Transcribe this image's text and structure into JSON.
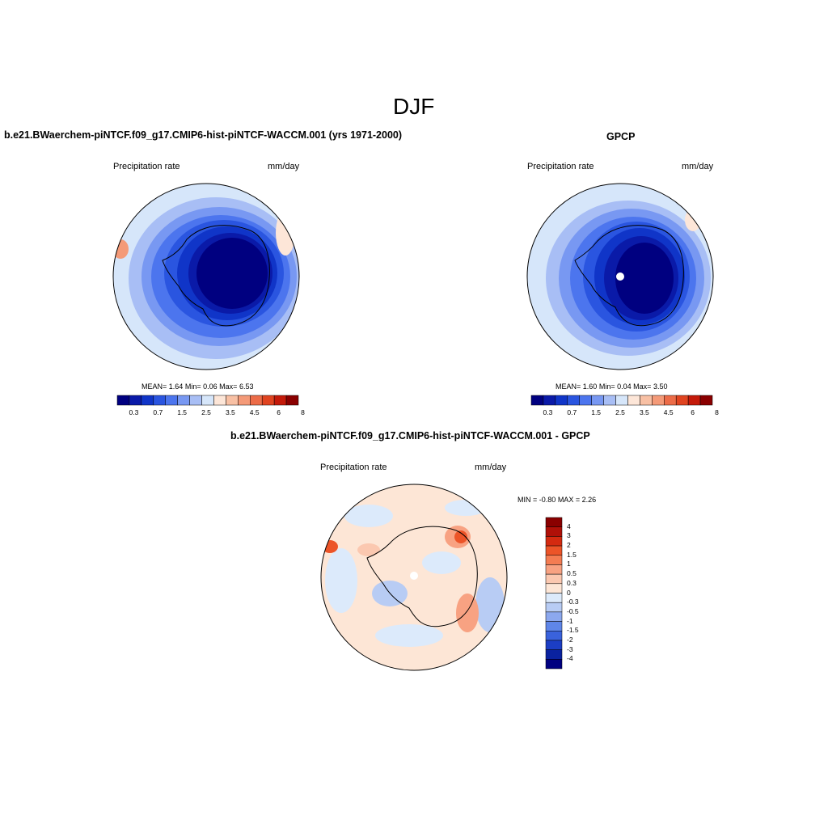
{
  "figure": {
    "title": "DJF"
  },
  "panels": {
    "model": {
      "title": "b.e21.BWaerchem-piNTCF.f09_g17.CMIP6-hist-piNTCF-WACCM.001 (yrs 1971-2000)",
      "variable": "Precipitation rate",
      "units": "mm/day",
      "stats": {
        "mean_label": "MEAN=",
        "mean": "1.64",
        "min_label": "Min=",
        "min": "0.06",
        "max_label": "Max=",
        "max": "6.53"
      }
    },
    "obs": {
      "title": "GPCP",
      "variable": "Precipitation rate",
      "units": "mm/day",
      "stats": {
        "mean_label": "MEAN=",
        "mean": "1.60",
        "min_label": "Min=",
        "min": "0.04",
        "max_label": "Max=",
        "max": "3.50"
      }
    },
    "diff": {
      "title": "b.e21.BWaerchem-piNTCF.f09_g17.CMIP6-hist-piNTCF-WACCM.001 - GPCP",
      "variable": "Precipitation rate",
      "units": "mm/day",
      "stats": {
        "min_label": "MIN =",
        "min": "-0.80",
        "max_label": "MAX =",
        "max": "2.26"
      }
    }
  },
  "colorbars": {
    "absolute": {
      "colors": [
        "#000080",
        "#0a1aa8",
        "#1035c8",
        "#2a55e0",
        "#4c75ee",
        "#7898f2",
        "#a8bef5",
        "#d6e6fa",
        "#fde6d8",
        "#f8c0a4",
        "#f49a78",
        "#ec6c48",
        "#e04420",
        "#c41a0a",
        "#8a0000"
      ],
      "tick_labels": [
        "0.3",
        "0.7",
        "1.5",
        "2.5",
        "3.5",
        "4.5",
        "6",
        "8"
      ]
    },
    "difference": {
      "colors": [
        "#8a0000",
        "#b01008",
        "#d42a10",
        "#ec5428",
        "#f47c52",
        "#f8a282",
        "#fbc8b0",
        "#fde6d6",
        "#dceafb",
        "#b8ccf4",
        "#8ca8ee",
        "#5f86e8",
        "#3a62dc",
        "#1c3ec4",
        "#0a22a0",
        "#000080"
      ],
      "tick_labels": [
        "4",
        "3",
        "2",
        "1.5",
        "1",
        "0.5",
        "0.3",
        "0",
        "-0.3",
        "-0.5",
        "-1",
        "-1.5",
        "-2",
        "-3",
        "-4"
      ]
    }
  },
  "map_colors": {
    "abs_levels": [
      "#000080",
      "#0a1aa8",
      "#1035c8",
      "#2a55e0",
      "#4c75ee",
      "#7898f2",
      "#a8bef5",
      "#d6e6fa",
      "#fde6d8",
      "#f8c0a4",
      "#f49a78",
      "#ec6c48",
      "#e04420"
    ],
    "coastline": "#000000"
  }
}
